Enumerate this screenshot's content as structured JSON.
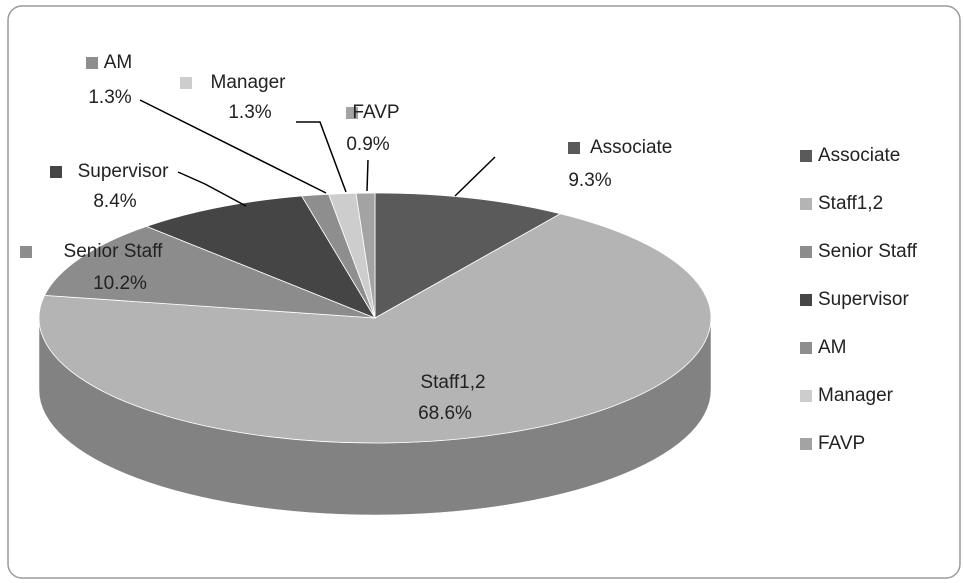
{
  "chart_data": {
    "type": "pie3d",
    "categories": [
      "Associate",
      "Staff1,2",
      "Senior Staff",
      "Supervisor",
      "AM",
      "Manager",
      "FAVP"
    ],
    "values": [
      9.3,
      68.6,
      10.2,
      8.4,
      1.3,
      1.3,
      0.9
    ],
    "value_labels": [
      "9.3%",
      "68.6%",
      "10.2%",
      "8.4%",
      "1.3%",
      "1.3%",
      "0.9%"
    ],
    "colors": [
      "#5a5a5a",
      "#b4b4b4",
      "#8c8c8c",
      "#454545",
      "#8e8e8e",
      "#cdcdcd",
      "#a3a3a3"
    ],
    "legend": "right"
  }
}
